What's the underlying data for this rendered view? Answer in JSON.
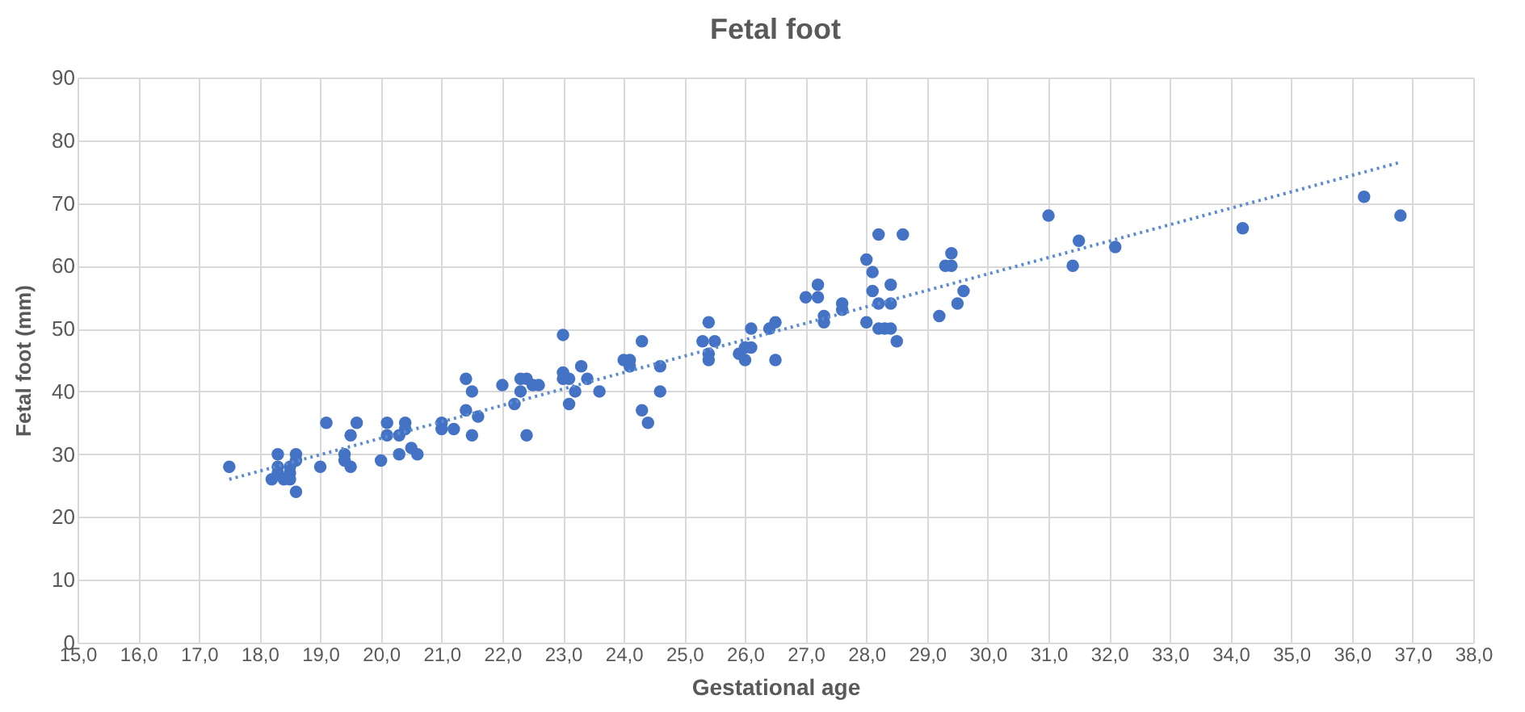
{
  "chart_data": {
    "type": "scatter",
    "title": "Fetal foot",
    "xlabel": "Gestational age",
    "ylabel": "Fetal foot (mm)",
    "xlim": [
      15,
      38
    ],
    "ylim": [
      0,
      90
    ],
    "xticks": [
      {
        "value": 15,
        "label": "15,0"
      },
      {
        "value": 16,
        "label": "16,0"
      },
      {
        "value": 17,
        "label": "17,0"
      },
      {
        "value": 18,
        "label": "18,0"
      },
      {
        "value": 19,
        "label": "19,0"
      },
      {
        "value": 20,
        "label": "20,0"
      },
      {
        "value": 21,
        "label": "21,0"
      },
      {
        "value": 22,
        "label": "22,0"
      },
      {
        "value": 23,
        "label": "23,0"
      },
      {
        "value": 24,
        "label": "24,0"
      },
      {
        "value": 25,
        "label": "25,0"
      },
      {
        "value": 26,
        "label": "26,0"
      },
      {
        "value": 27,
        "label": "27,0"
      },
      {
        "value": 28,
        "label": "28,0"
      },
      {
        "value": 29,
        "label": "29,0"
      },
      {
        "value": 30,
        "label": "30,0"
      },
      {
        "value": 31,
        "label": "31,0"
      },
      {
        "value": 32,
        "label": "32,0"
      },
      {
        "value": 33,
        "label": "33,0"
      },
      {
        "value": 34,
        "label": "34,0"
      },
      {
        "value": 35,
        "label": "35,0"
      },
      {
        "value": 36,
        "label": "36,0"
      },
      {
        "value": 37,
        "label": "37,0"
      },
      {
        "value": 38,
        "label": "38,0"
      }
    ],
    "yticks": [
      0,
      10,
      20,
      30,
      40,
      50,
      60,
      70,
      80,
      90
    ],
    "grid": true,
    "marker": "circle",
    "series": [
      {
        "color": "#4472c4",
        "x": [
          17.5,
          18.2,
          18.3,
          18.3,
          18.3,
          18.4,
          18.5,
          18.5,
          18.6,
          18.6,
          18.6,
          18.5,
          19.0,
          19.1,
          19.4,
          19.5,
          19.5,
          19.6,
          19.4,
          20.0,
          20.1,
          20.1,
          20.3,
          20.3,
          20.4,
          20.4,
          20.5,
          20.6,
          21.0,
          21.0,
          21.2,
          21.4,
          21.4,
          21.5,
          21.6,
          21.5,
          22.0,
          22.2,
          22.3,
          22.3,
          22.4,
          22.4,
          22.5,
          22.6,
          23.0,
          23.0,
          23.0,
          23.1,
          23.1,
          23.3,
          23.2,
          23.4,
          23.6,
          24.0,
          24.1,
          24.1,
          24.3,
          24.3,
          24.4,
          24.6,
          24.6,
          25.3,
          25.4,
          25.4,
          25.4,
          25.5,
          25.9,
          26.0,
          26.0,
          26.1,
          26.1,
          26.4,
          26.5,
          26.5,
          27.0,
          27.2,
          27.2,
          27.3,
          27.3,
          27.6,
          27.6,
          28.0,
          28.0,
          28.1,
          28.2,
          28.1,
          28.2,
          28.2,
          28.3,
          28.4,
          28.4,
          28.4,
          28.5,
          28.6,
          29.2,
          29.3,
          29.4,
          29.4,
          29.5,
          29.6,
          31.0,
          31.4,
          31.5,
          32.1,
          34.2,
          36.2,
          36.8
        ],
        "values": [
          28,
          26,
          27,
          28,
          30,
          26,
          27,
          28,
          29,
          30,
          24,
          26,
          28,
          35,
          29,
          28,
          33,
          35,
          30,
          29,
          35,
          33,
          30,
          33,
          35,
          34,
          31,
          30,
          35,
          34,
          34,
          42,
          37,
          33,
          36,
          40,
          41,
          38,
          42,
          40,
          33,
          42,
          41,
          41,
          49,
          43,
          42,
          38,
          42,
          44,
          40,
          42,
          40,
          45,
          45,
          44,
          48,
          37,
          35,
          44,
          40,
          48,
          51,
          46,
          45,
          48,
          46,
          45,
          47,
          50,
          47,
          50,
          45,
          51,
          55,
          57,
          55,
          52,
          51,
          54,
          53,
          61,
          51,
          56,
          65,
          59,
          54,
          50,
          50,
          57,
          54,
          50,
          48,
          65,
          52,
          60,
          62,
          60,
          54,
          56,
          68,
          60,
          64,
          63,
          66,
          71,
          68
        ]
      },
      {
        "type": "line",
        "color": "#5b8bd0",
        "line_style": "dotted",
        "marker": "none",
        "x": [
          17.5,
          36.8
        ],
        "values": [
          26,
          76.5
        ]
      }
    ]
  }
}
